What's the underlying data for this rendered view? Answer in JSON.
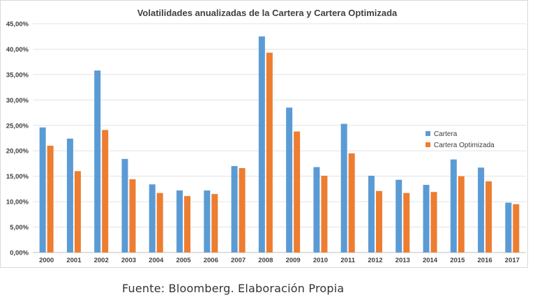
{
  "chart_data": {
    "type": "bar",
    "title": "Volatilidades anualizadas de la Cartera y Cartera Optimizada",
    "xlabel": "",
    "ylabel": "",
    "ylim": [
      0,
      45
    ],
    "y_ticks": [
      "0,00%",
      "5,00%",
      "10,00%",
      "15,00%",
      "20,00%",
      "25,00%",
      "30,00%",
      "35,00%",
      "40,00%",
      "45,00%"
    ],
    "categories": [
      "2000",
      "2001",
      "2002",
      "2003",
      "2004",
      "2005",
      "2006",
      "2007",
      "2008",
      "2009",
      "2010",
      "2011",
      "2012",
      "2013",
      "2014",
      "2015",
      "2016",
      "2017"
    ],
    "series": [
      {
        "name": "Cartera",
        "color": "#5b9bd5",
        "values": [
          24.6,
          22.4,
          35.8,
          18.4,
          13.4,
          12.2,
          12.2,
          17.0,
          42.5,
          28.5,
          16.8,
          25.3,
          15.1,
          14.3,
          13.3,
          18.3,
          16.7,
          9.8
        ]
      },
      {
        "name": "Cartera Optimizada",
        "color": "#ed7d31",
        "values": [
          21.0,
          16.0,
          24.1,
          14.4,
          11.7,
          11.1,
          11.5,
          16.6,
          39.3,
          23.8,
          15.1,
          19.5,
          12.1,
          11.7,
          11.9,
          15.0,
          14.0,
          9.5
        ]
      }
    ],
    "legend_position": "right",
    "grid": true
  },
  "footer": {
    "source": "Fuente: Bloomberg. Elaboración Propia"
  }
}
